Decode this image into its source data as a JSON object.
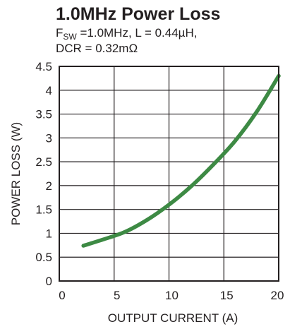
{
  "chart_data": {
    "type": "line",
    "title": "1.0MHz Power Loss",
    "subtitle_line1": {
      "f_main": "F",
      "f_sub": "SW",
      "rest": " =1.0MHz, L = 0.44µH,"
    },
    "subtitle_line2": "DCR = 0.32mΩ",
    "xlabel": "OUTPUT CURRENT (A)",
    "ylabel": "POWER LOSS (W)",
    "xlim": [
      0,
      20
    ],
    "ylim": [
      0,
      4.5
    ],
    "x_ticks": [
      0,
      5,
      10,
      15,
      20
    ],
    "y_ticks": [
      0,
      0.5,
      1,
      1.5,
      2,
      2.5,
      3,
      3.5,
      4,
      4.5
    ],
    "x_tick_labels": [
      "0",
      "5",
      "10",
      "15",
      "20"
    ],
    "y_tick_labels": [
      "0",
      "0.5",
      "1",
      "1.5",
      "2",
      "2.5",
      "3",
      "3.5",
      "4",
      "4.5"
    ],
    "grid": true,
    "series": [
      {
        "color": "#3d8a44",
        "x": [
          2.2,
          4,
          6,
          8,
          10,
          12,
          14,
          16,
          18,
          20
        ],
        "y": [
          0.74,
          0.87,
          1.03,
          1.28,
          1.6,
          1.98,
          2.43,
          2.93,
          3.55,
          4.3
        ]
      }
    ]
  }
}
